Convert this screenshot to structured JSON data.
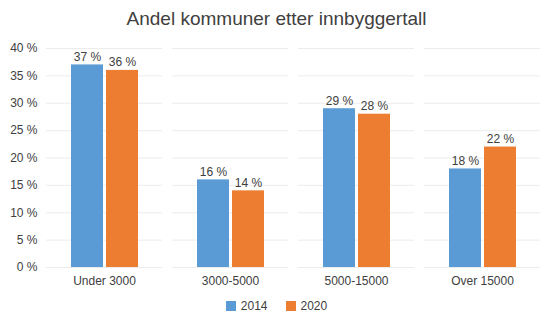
{
  "chart_data": {
    "type": "bar",
    "title": "Andel kommuner etter innbyggertall",
    "categories": [
      "Under 3000",
      "3000-5000",
      "5000-15000",
      "Over 15000"
    ],
    "series": [
      {
        "name": "2014",
        "color": "#5b9bd5",
        "values": [
          37,
          16,
          29,
          18
        ],
        "value_labels": [
          "37 %",
          "16 %",
          "29 %",
          "18 %"
        ]
      },
      {
        "name": "2020",
        "color": "#ed7d31",
        "values": [
          36,
          14,
          28,
          22
        ],
        "value_labels": [
          "36 %",
          "14 %",
          "28 %",
          "22 %"
        ]
      }
    ],
    "ylim": [
      0,
      40
    ],
    "yticks": [
      {
        "value": 0,
        "label": "0 %"
      },
      {
        "value": 5,
        "label": "5 %"
      },
      {
        "value": 10,
        "label": "10 %"
      },
      {
        "value": 15,
        "label": "15 %"
      },
      {
        "value": 20,
        "label": "20 %"
      },
      {
        "value": 25,
        "label": "25 %"
      },
      {
        "value": 30,
        "label": "30 %"
      },
      {
        "value": 35,
        "label": "35 %"
      },
      {
        "value": 40,
        "label": "40 %"
      }
    ],
    "grid": true,
    "legend": "bottom",
    "data_labels": true
  }
}
